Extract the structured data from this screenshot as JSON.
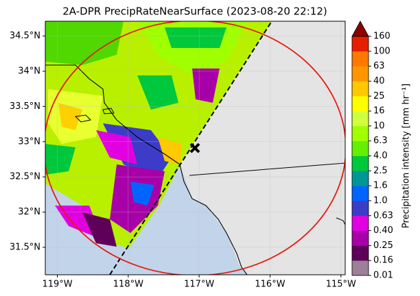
{
  "map": {
    "title": "2A-DPR PrecipRateNearSurface (2023-08-20 22:12)",
    "xlim": [
      -119.17,
      -114.94
    ],
    "ylim": [
      31.11,
      34.71
    ],
    "grid": true,
    "lon_ticks": [
      {
        "value": -119,
        "label": "119°W"
      },
      {
        "value": -118,
        "label": "118°W"
      },
      {
        "value": -117,
        "label": "117°W"
      },
      {
        "value": -116,
        "label": "116°W"
      },
      {
        "value": -115,
        "label": "115°W"
      }
    ],
    "lat_ticks": [
      {
        "value": 31.5,
        "label": "31.5°N"
      },
      {
        "value": 32,
        "label": "32°N"
      },
      {
        "value": 32.5,
        "label": "32.5°N"
      },
      {
        "value": 33,
        "label": "33°N"
      },
      {
        "value": 33.5,
        "label": "33.5°N"
      },
      {
        "value": 34,
        "label": "34°N"
      },
      {
        "value": 34.5,
        "label": "34.5°N"
      }
    ],
    "colorbar": {
      "label": "Precipitation intensity [mm hr⁻¹]",
      "ticks": [
        0.01,
        0.16,
        0.25,
        {
          "value": 0.4,
          "label": "0.40"
        },
        0.63,
        {
          "value": 1,
          "label": "1.0"
        },
        1.6,
        2.5,
        {
          "value": 4,
          "label": "4.0"
        },
        6.3,
        10,
        16,
        25,
        40,
        63,
        100,
        160
      ],
      "colors": [
        "#9c8096",
        "#5e005a",
        "#a800a8",
        "#e000e0",
        "#3c3cc8",
        "#0064ff",
        "#009696",
        "#00c83c",
        "#64f000",
        "#a0ff00",
        "#d0ff40",
        "#ffff00",
        "#ffc800",
        "#ff9600",
        "#ff7800",
        "#e61e00"
      ],
      "extend_color": "#8c0000"
    }
  }
}
